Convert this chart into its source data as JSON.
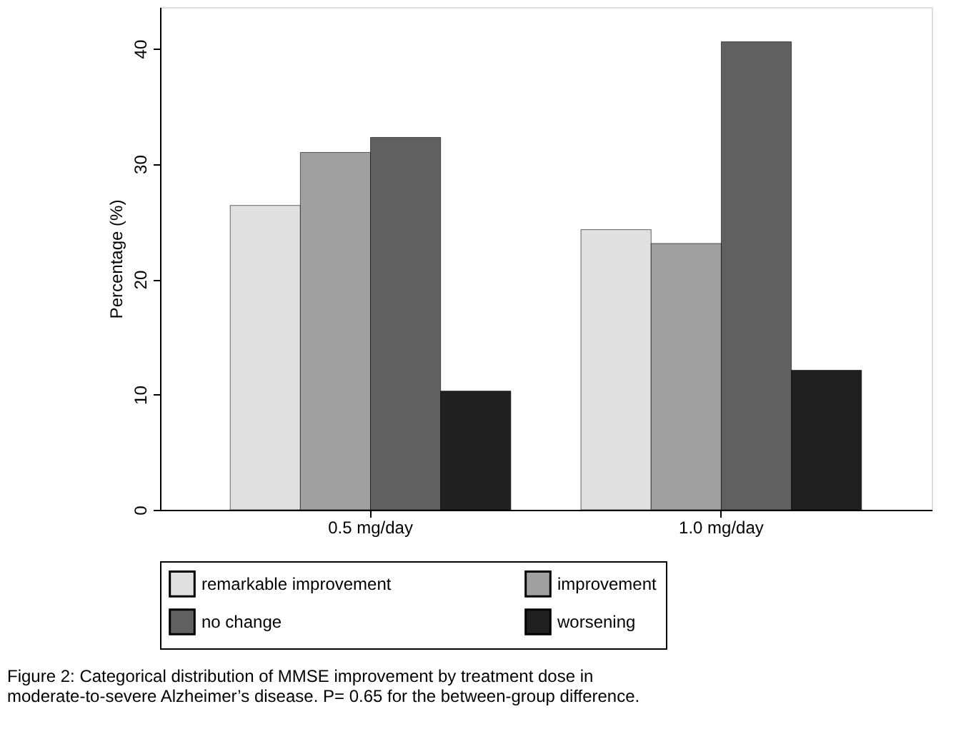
{
  "chart_data": {
    "type": "bar",
    "ylabel": "Percentage (%)",
    "categories": [
      "0.5 mg/day",
      "1.0 mg/day"
    ],
    "series": [
      {
        "name": "remarkable improvement",
        "color": "#e0e0e0",
        "values": [
          26.4,
          24.3
        ]
      },
      {
        "name": "improvement",
        "color": "#a0a0a0",
        "values": [
          31.0,
          23.1
        ]
      },
      {
        "name": "no change",
        "color": "#606060",
        "values": [
          32.3,
          40.6
        ]
      },
      {
        "name": "worsening",
        "color": "#202020",
        "values": [
          10.3,
          12.1
        ]
      }
    ],
    "ylim": [
      0,
      43.6
    ],
    "yticks": [
      0,
      10,
      20,
      30,
      40
    ],
    "grid": false,
    "legend": "bottom",
    "annotations": [
      "Figure 2: Categorical distribution of MMSE improvement by treatment dose in moderate-to-severe Alzheimer’s disease. P= 0.65 for the between-group difference."
    ]
  }
}
